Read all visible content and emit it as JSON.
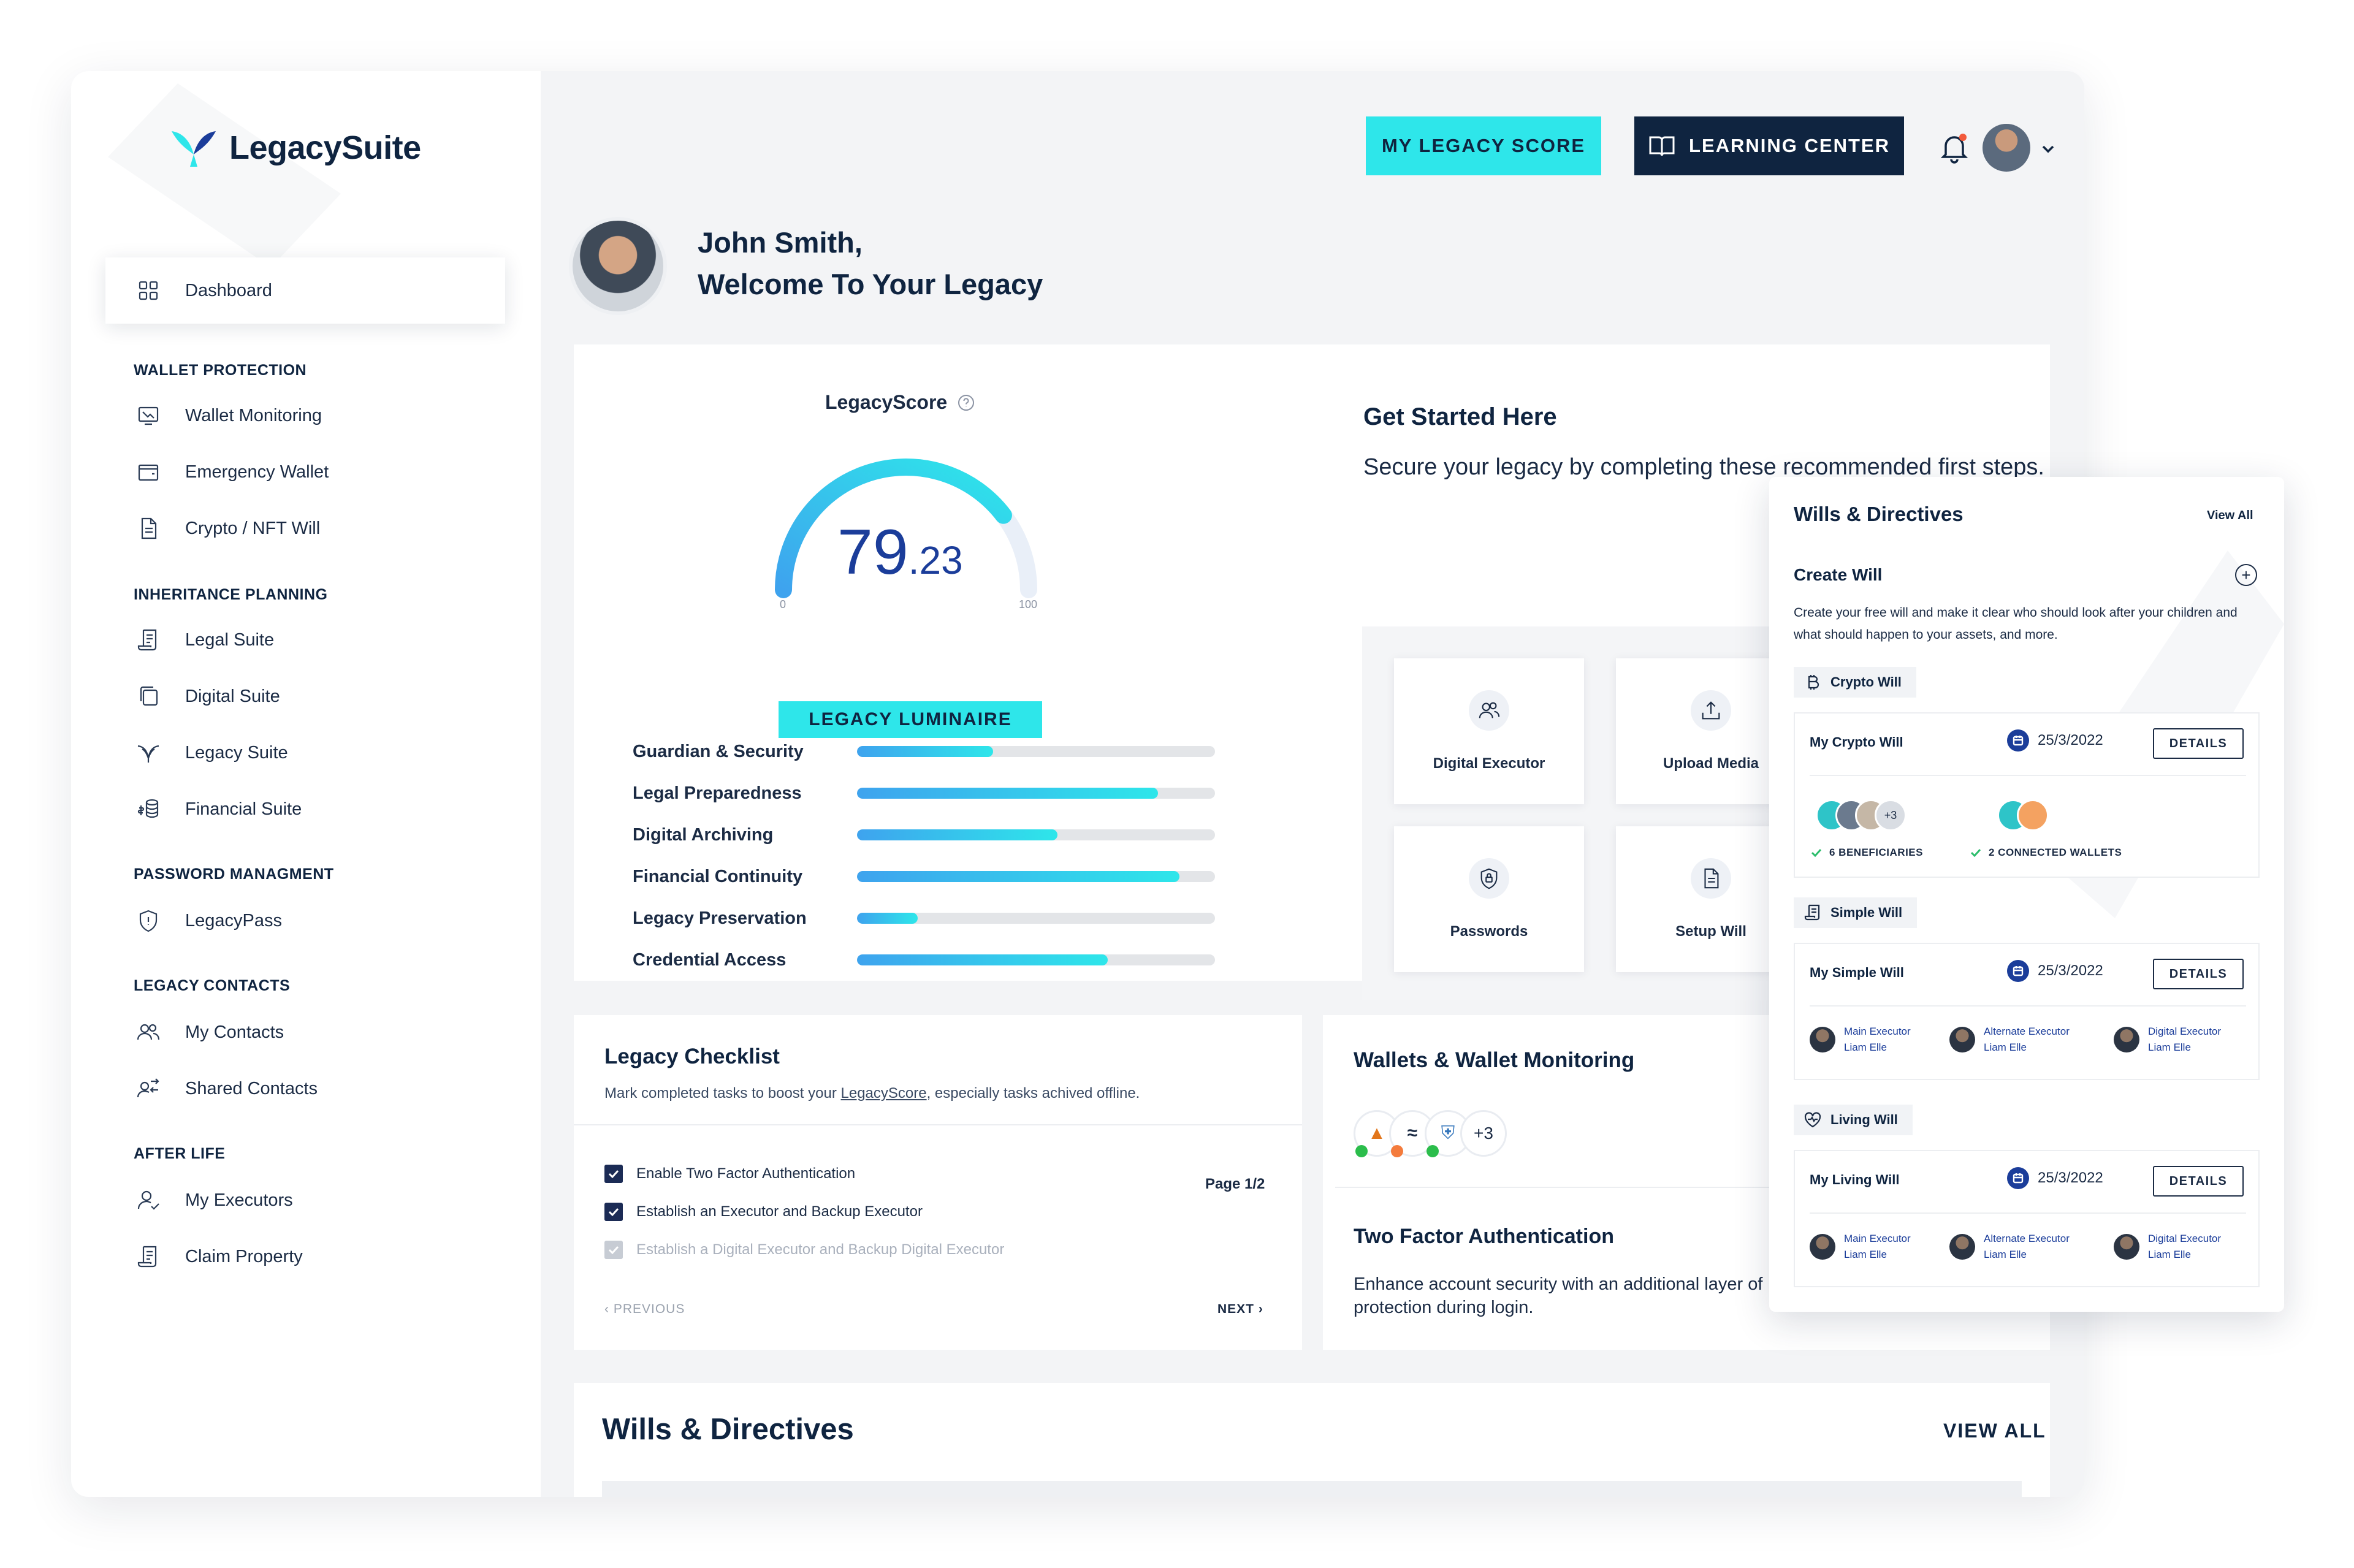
{
  "brand": {
    "name": "LegacySuite"
  },
  "sidebar": {
    "active": {
      "label": "Dashboard",
      "icon": "grid-icon"
    },
    "sections": [
      {
        "title": "WALLET PROTECTION",
        "items": [
          {
            "label": "Wallet Monitoring",
            "icon": "monitor-icon"
          },
          {
            "label": "Emergency Wallet",
            "icon": "wallet-icon"
          },
          {
            "label": "Crypto / NFT Will",
            "icon": "document-icon"
          }
        ]
      },
      {
        "title": "INHERITANCE PLANNING",
        "items": [
          {
            "label": "Legal Suite",
            "icon": "scroll-icon"
          },
          {
            "label": "Digital Suite",
            "icon": "copy-icon"
          },
          {
            "label": "Legacy Suite",
            "icon": "bird-icon"
          },
          {
            "label": "Financial Suite",
            "icon": "coins-icon"
          }
        ]
      },
      {
        "title": "PASSWORD MANAGMENT",
        "items": [
          {
            "label": "LegacyPass",
            "icon": "shield-icon"
          }
        ]
      },
      {
        "title": "LEGACY CONTACTS",
        "items": [
          {
            "label": "My Contacts",
            "icon": "users-icon"
          },
          {
            "label": "Shared Contacts",
            "icon": "share-users-icon"
          }
        ]
      },
      {
        "title": "AFTER LIFE",
        "items": [
          {
            "label": "My Executors",
            "icon": "user-check-icon"
          },
          {
            "label": "Claim Property",
            "icon": "scroll-icon"
          }
        ]
      }
    ]
  },
  "topbar": {
    "score_btn": "MY LEGACY SCORE",
    "learn_btn": "LEARNING CENTER"
  },
  "welcome": {
    "name": "John Smith,",
    "subtitle": "Welcome To Your Legacy"
  },
  "legacy_score": {
    "title": "LegacyScore",
    "value_int": "79",
    "value_dec": ".23",
    "min": "0",
    "max": "100",
    "fraction": 0.7923,
    "badge": "LEGACY LUMINAIRE",
    "metrics": [
      {
        "label": "Guardian & Security",
        "fraction": 0.38
      },
      {
        "label": "Legal Preparedness",
        "fraction": 0.84
      },
      {
        "label": "Digital Archiving",
        "fraction": 0.56
      },
      {
        "label": "Financial Continuity",
        "fraction": 0.9
      },
      {
        "label": "Legacy Preservation",
        "fraction": 0.17
      },
      {
        "label": "Credential Access",
        "fraction": 0.7
      }
    ]
  },
  "get_started": {
    "title": "Get Started Here",
    "subtitle": "Secure your legacy by completing these recommended first steps.",
    "tiles": [
      {
        "label": "Digital Executor",
        "icon": "users-icon"
      },
      {
        "label": "Upload Media",
        "icon": "upload-icon"
      },
      {
        "label": "Passwords",
        "icon": "shield-lock-icon"
      },
      {
        "label": "Setup Will",
        "icon": "document-icon"
      }
    ]
  },
  "checklist": {
    "title": "Legacy Checklist",
    "subtitle_pre": "Mark completed tasks to boost your ",
    "subtitle_link": "LegacyScore",
    "subtitle_post": ", especially tasks achived offline.",
    "page": "Page 1/2",
    "items": [
      {
        "label": "Enable Two Factor Authentication",
        "checked": true
      },
      {
        "label": "Establish an Executor and Backup Executor",
        "checked": true
      },
      {
        "label": "Establish a Digital Executor and Backup Digital Executor",
        "checked": false
      }
    ],
    "prev": "‹ PREVIOUS",
    "next": "NEXT ›"
  },
  "wallets": {
    "title": "Wallets & Wallet Monitoring",
    "more": "+3",
    "tfa_title": "Two Factor Authentication",
    "tfa_sub": "Enhance account security with an additional layer of protection during login."
  },
  "wills_section": {
    "title": "Wills & Directives",
    "view_all": "VIEW ALL"
  },
  "panel": {
    "title": "Wills & Directives",
    "view_all": "View All",
    "create_title": "Create Will",
    "create_sub": "Create your free will and make it clear who should look after your children and what should happen to your assets, and more.",
    "crypto": {
      "tag": "Crypto Will",
      "name": "My Crypto Will",
      "date": "25/3/2022",
      "details": "DETAILS",
      "more": "+3",
      "beneficiaries": "6 BENEFICIARIES",
      "wallets": "2 CONNECTED WALLETS"
    },
    "simple": {
      "tag": "Simple Will",
      "name": "My Simple Will",
      "date": "25/3/2022",
      "details": "DETAILS",
      "executors": [
        {
          "role": "Main Executor",
          "name": "Liam Elle"
        },
        {
          "role": "Alternate Executor",
          "name": "Liam Elle"
        },
        {
          "role": "Digital Executor",
          "name": "Liam Elle"
        }
      ]
    },
    "living": {
      "tag": "Living Will",
      "name": "My Living Will",
      "date": "25/3/2022",
      "details": "DETAILS",
      "executors": [
        {
          "role": "Main Executor",
          "name": "Liam Elle"
        },
        {
          "role": "Alternate Executor",
          "name": "Liam Elle"
        },
        {
          "role": "Digital Executor",
          "name": "Liam Elle"
        }
      ]
    }
  },
  "colors": {
    "accent": "#2ee6ea",
    "navy": "#0f2440",
    "blue": "#1b3d9a"
  }
}
